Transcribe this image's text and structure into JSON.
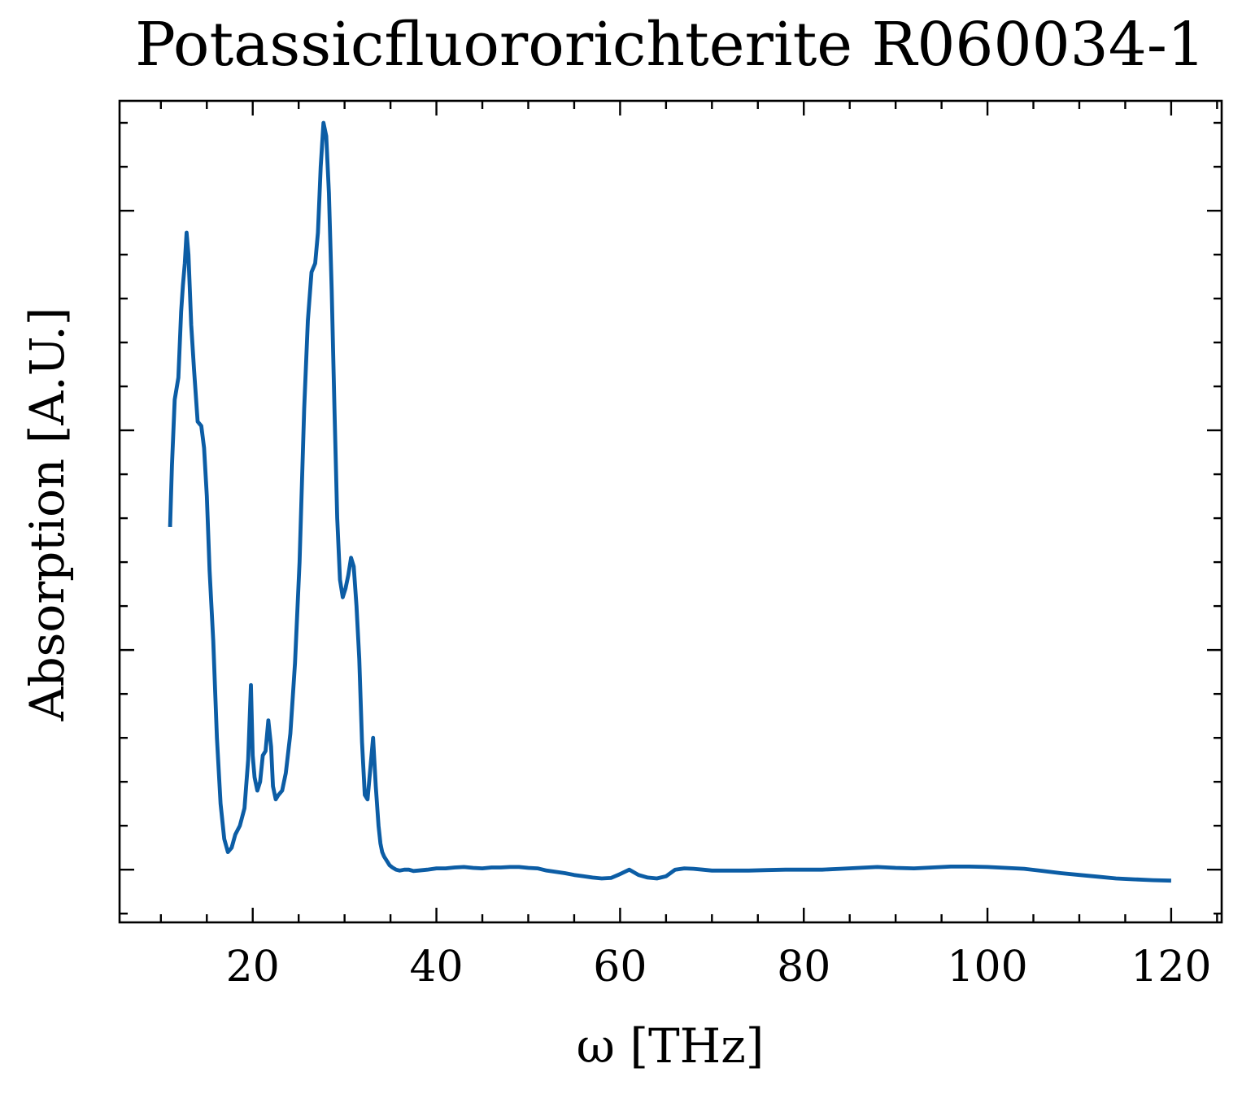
{
  "chart_data": {
    "type": "line",
    "title": "Potassicfluororichterite R060034-1",
    "xlabel": "ω [THz]",
    "ylabel": "Absorption [A.U.]",
    "xlim": [
      5.5,
      125.5
    ],
    "ylim": [
      -0.12,
      1.75
    ],
    "x_ticks": [
      20,
      40,
      60,
      80,
      100,
      120
    ],
    "x_tick_labels": [
      "20",
      "40",
      "60",
      "80",
      "100",
      "120"
    ],
    "x_minor_ticks": [
      10,
      15,
      25,
      30,
      35,
      45,
      50,
      55,
      65,
      70,
      75,
      85,
      90,
      95,
      105,
      110,
      115,
      125
    ],
    "y_ticks": [
      0,
      0.5,
      1.0,
      1.5
    ],
    "y_minor_ticks": [
      -0.1,
      0.1,
      0.2,
      0.3,
      0.4,
      0.6,
      0.7,
      0.8,
      0.9,
      1.1,
      1.2,
      1.3,
      1.4,
      1.6,
      1.7
    ],
    "y_tick_labels_shown": false,
    "grid": false,
    "legend": "none",
    "line_color": "#0C5DA5",
    "series": [
      {
        "x": [
          11.0,
          11.2,
          11.5,
          11.9,
          12.2,
          12.4,
          12.6,
          12.8,
          13.0,
          13.3,
          13.6,
          14.0,
          14.4,
          14.7,
          15.0,
          15.3,
          15.7,
          16.1,
          16.5,
          16.9,
          17.3,
          17.7,
          18.1,
          18.6,
          19.1,
          19.5,
          19.8,
          20.0,
          20.2,
          20.5,
          20.8,
          21.1,
          21.4,
          21.7,
          22.0,
          22.2,
          22.5,
          22.8,
          23.2,
          23.6,
          24.1,
          24.6,
          25.1,
          25.6,
          26.0,
          26.4,
          26.8,
          27.1,
          27.4,
          27.7,
          28.0,
          28.3,
          28.6,
          28.9,
          29.2,
          29.5,
          29.8,
          30.1,
          30.4,
          30.7,
          31.0,
          31.3,
          31.6,
          31.9,
          32.2,
          32.5,
          32.8,
          33.1,
          33.4,
          33.7,
          33.9,
          34.1,
          34.3,
          34.6,
          34.9,
          35.2,
          35.6,
          36.0,
          36.5,
          37.0,
          37.5,
          38.0,
          39.0,
          40.0,
          41.0,
          42.0,
          43.0,
          44.0,
          45.0,
          46.0,
          47.0,
          48.0,
          49.0,
          50.0,
          51.0,
          52.0,
          53.0,
          54.0,
          55.0,
          56.0,
          57.0,
          58.0,
          59.0,
          60.0,
          61.0,
          62.0,
          63.0,
          64.0,
          65.0,
          66.0,
          67.0,
          68.0,
          69.0,
          70.0,
          72.0,
          74.0,
          76.0,
          78.0,
          80.0,
          82.0,
          84.0,
          86.0,
          88.0,
          90.0,
          92.0,
          94.0,
          96.0,
          98.0,
          100.0,
          102.0,
          104.0,
          106.0,
          108.0,
          110.0,
          112.0,
          114.0,
          116.0,
          118.0,
          120.0
        ],
        "y": [
          0.78,
          0.92,
          1.07,
          1.12,
          1.27,
          1.33,
          1.38,
          1.45,
          1.4,
          1.24,
          1.14,
          1.02,
          1.01,
          0.96,
          0.85,
          0.68,
          0.52,
          0.3,
          0.15,
          0.07,
          0.04,
          0.05,
          0.08,
          0.1,
          0.14,
          0.25,
          0.42,
          0.26,
          0.21,
          0.18,
          0.2,
          0.26,
          0.27,
          0.34,
          0.28,
          0.19,
          0.16,
          0.17,
          0.18,
          0.22,
          0.31,
          0.47,
          0.7,
          1.05,
          1.25,
          1.36,
          1.38,
          1.45,
          1.6,
          1.7,
          1.67,
          1.54,
          1.32,
          1.05,
          0.8,
          0.66,
          0.62,
          0.64,
          0.67,
          0.71,
          0.69,
          0.6,
          0.48,
          0.29,
          0.17,
          0.16,
          0.23,
          0.3,
          0.19,
          0.1,
          0.06,
          0.04,
          0.03,
          0.02,
          0.01,
          0.005,
          0.0,
          -0.002,
          0.0,
          0.0,
          -0.003,
          -0.002,
          0.0,
          0.003,
          0.003,
          0.005,
          0.006,
          0.004,
          0.003,
          0.005,
          0.005,
          0.006,
          0.006,
          0.004,
          0.003,
          -0.002,
          -0.005,
          -0.008,
          -0.012,
          -0.015,
          -0.018,
          -0.02,
          -0.019,
          -0.01,
          0.0,
          -0.012,
          -0.018,
          -0.02,
          -0.015,
          0.0,
          0.003,
          0.002,
          0.0,
          -0.002,
          -0.002,
          -0.002,
          -0.001,
          0.0,
          0.0,
          0.0,
          0.002,
          0.004,
          0.006,
          0.004,
          0.003,
          0.005,
          0.007,
          0.007,
          0.006,
          0.004,
          0.002,
          -0.003,
          -0.008,
          -0.012,
          -0.016,
          -0.02,
          -0.022,
          -0.024,
          -0.025
        ]
      }
    ]
  }
}
